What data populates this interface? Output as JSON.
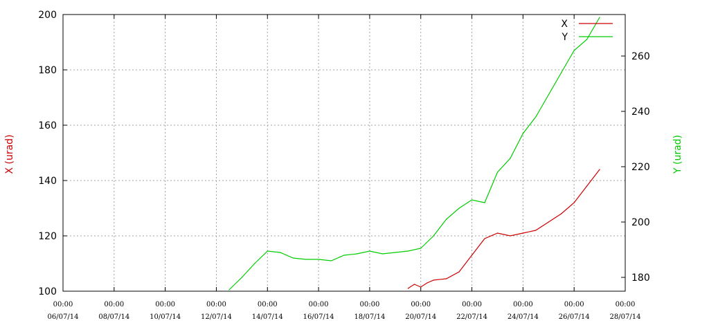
{
  "chart_data": {
    "type": "line",
    "title": "",
    "xlabel": "",
    "ylabel": "X (urad)",
    "y2label": "Y (urad)",
    "ylim": [
      100,
      200
    ],
    "y2lim": [
      175,
      275
    ],
    "yticks": [
      "100",
      "120",
      "140",
      "160",
      "180",
      "200"
    ],
    "y2ticks": [
      "180",
      "200",
      "220",
      "240",
      "260"
    ],
    "xticks": [
      {
        "time": "00:00",
        "date": "06/07/14"
      },
      {
        "time": "00:00",
        "date": "08/07/14"
      },
      {
        "time": "00:00",
        "date": "10/07/14"
      },
      {
        "time": "00:00",
        "date": "12/07/14"
      },
      {
        "time": "00:00",
        "date": "14/07/14"
      },
      {
        "time": "00:00",
        "date": "16/07/14"
      },
      {
        "time": "00:00",
        "date": "18/07/14"
      },
      {
        "time": "00:00",
        "date": "20/07/14"
      },
      {
        "time": "00:00",
        "date": "22/07/14"
      },
      {
        "time": "00:00",
        "date": "24/07/14"
      },
      {
        "time": "00:00",
        "date": "26/07/14"
      },
      {
        "time": "00:00",
        "date": "28/07/14"
      }
    ],
    "grid": true,
    "legend_position": "top-right",
    "series": [
      {
        "name": "X",
        "color": "#cc0000",
        "axis": "left",
        "x": [
          "19/07/14 12:00",
          "19/07/14 18:00",
          "20/07/14 00:00",
          "20/07/14 06:00",
          "20/07/14 12:00",
          "21/07/14 00:00",
          "21/07/14 12:00",
          "22/07/14 00:00",
          "22/07/14 12:00",
          "23/07/14 00:00",
          "23/07/14 12:00",
          "24/07/14 00:00",
          "24/07/14 12:00",
          "25/07/14 00:00",
          "25/07/14 12:00",
          "26/07/14 00:00",
          "26/07/14 12:00",
          "27/07/14 00:00"
        ],
        "values": [
          101,
          102.5,
          101.5,
          103,
          104,
          104.5,
          107,
          113,
          119,
          121,
          120,
          121,
          122,
          125,
          128,
          132,
          138,
          144
        ]
      },
      {
        "name": "Y",
        "color": "#00cc00",
        "axis": "right",
        "x": [
          "12/07/14 12:00",
          "13/07/14 00:00",
          "13/07/14 12:00",
          "14/07/14 00:00",
          "14/07/14 12:00",
          "15/07/14 00:00",
          "15/07/14 12:00",
          "16/07/14 00:00",
          "16/07/14 12:00",
          "17/07/14 00:00",
          "17/07/14 12:00",
          "18/07/14 00:00",
          "18/07/14 12:00",
          "19/07/14 00:00",
          "19/07/14 12:00",
          "20/07/14 00:00",
          "20/07/14 12:00",
          "21/07/14 00:00",
          "21/07/14 12:00",
          "22/07/14 00:00",
          "22/07/14 12:00",
          "23/07/14 00:00",
          "23/07/14 12:00",
          "24/07/14 00:00",
          "24/07/14 12:00",
          "25/07/14 00:00",
          "25/07/14 12:00",
          "26/07/14 00:00",
          "26/07/14 12:00",
          "27/07/14 00:00"
        ],
        "values": [
          175.5,
          180,
          185,
          189.5,
          189,
          187,
          186.5,
          186.5,
          186,
          188,
          188.5,
          189.5,
          188.5,
          189,
          189.5,
          190.5,
          195,
          201,
          205,
          208,
          207,
          218,
          223,
          232,
          238,
          246,
          254,
          262,
          266,
          274
        ]
      }
    ]
  }
}
